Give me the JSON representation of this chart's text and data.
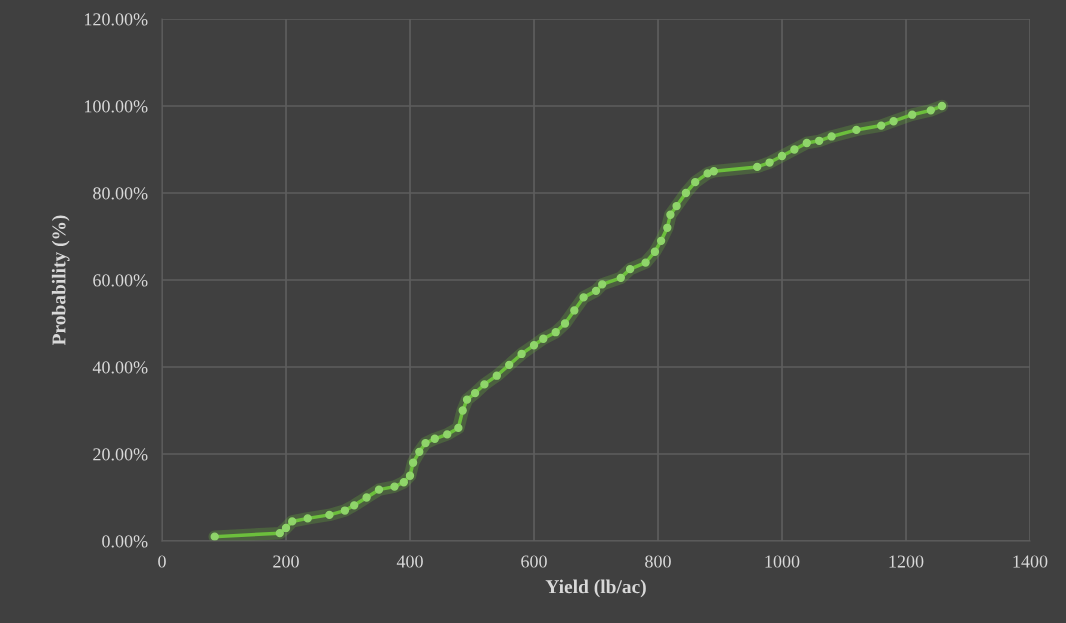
{
  "chart_data": {
    "type": "line",
    "xlabel": "Yield (lb/ac)",
    "ylabel": "Probability (%)",
    "xlim": [
      0,
      1400
    ],
    "xticks": [
      0,
      200,
      400,
      600,
      800,
      1000,
      1200,
      1400
    ],
    "ylim": [
      0,
      120
    ],
    "yticks": [
      {
        "value": 0,
        "label": "0.00%"
      },
      {
        "value": 20,
        "label": "20.00%"
      },
      {
        "value": 40,
        "label": "40.00%"
      },
      {
        "value": 60,
        "label": "60.00%"
      },
      {
        "value": 80,
        "label": "80.00%"
      },
      {
        "value": 100,
        "label": "100.00%"
      },
      {
        "value": 120,
        "label": "120.00%"
      }
    ],
    "grid": true,
    "marker": "circle",
    "line_style": "solid",
    "series": [
      {
        "color": "#6cbf3c",
        "x": [
          85,
          190,
          200,
          210,
          235,
          270,
          295,
          310,
          330,
          350,
          375,
          390,
          400,
          405,
          415,
          425,
          440,
          460,
          478,
          485,
          492,
          505,
          520,
          540,
          560,
          580,
          600,
          615,
          635,
          650,
          665,
          680,
          700,
          710,
          740,
          755,
          780,
          795,
          805,
          815,
          820,
          830,
          845,
          860,
          880,
          890,
          960,
          980,
          1000,
          1020,
          1040,
          1060,
          1080,
          1120,
          1160,
          1180,
          1210,
          1240,
          1258
        ],
        "values": [
          1,
          1.8,
          3,
          4.5,
          5.2,
          6,
          7,
          8.2,
          10,
          11.8,
          12.5,
          13.5,
          15,
          18,
          20.5,
          22.5,
          23.5,
          24.5,
          26,
          30,
          32.5,
          34,
          36,
          38,
          40.5,
          43,
          45,
          46.5,
          48,
          50,
          53,
          56,
          57.5,
          59,
          60.5,
          62.5,
          64,
          66.5,
          69,
          72,
          75,
          77,
          80,
          82.5,
          84.5,
          85,
          86,
          87,
          88.5,
          90,
          91.5,
          92,
          93,
          94.5,
          95.5,
          96.5,
          98,
          99,
          100
        ]
      }
    ]
  }
}
